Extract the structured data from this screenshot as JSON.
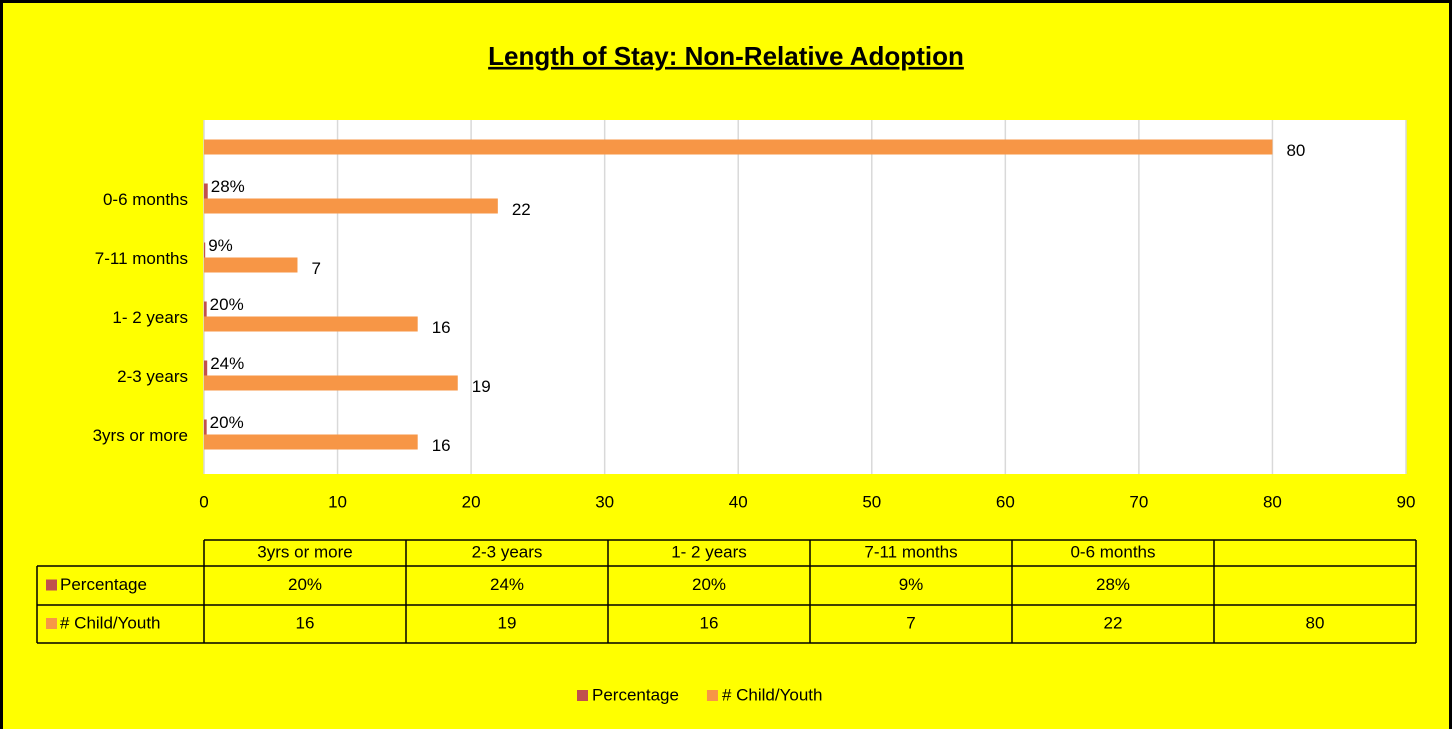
{
  "chart_data": {
    "type": "bar",
    "orientation": "horizontal",
    "title": "Length of Stay: Non-Relative Adoption",
    "categories": [
      "3yrs or more",
      "2-3 years",
      "1- 2 years",
      "7-11 months",
      "0-6 months",
      null
    ],
    "series": [
      {
        "name": "Percentage",
        "color": "#c0504d",
        "values": [
          0.2,
          0.24,
          0.2,
          0.09,
          0.28,
          null
        ],
        "value_labels": [
          "20%",
          "24%",
          "20%",
          "9%",
          "28%",
          null
        ]
      },
      {
        "name": "# Child/Youth",
        "color": "#f79646",
        "values": [
          16,
          19,
          16,
          7,
          22,
          80
        ]
      }
    ],
    "xlim": [
      0,
      90
    ],
    "xticks": [
      0,
      10,
      20,
      30,
      40,
      50,
      60,
      70,
      80,
      90
    ],
    "grid": true,
    "legend": "bottom",
    "data_table": true
  }
}
